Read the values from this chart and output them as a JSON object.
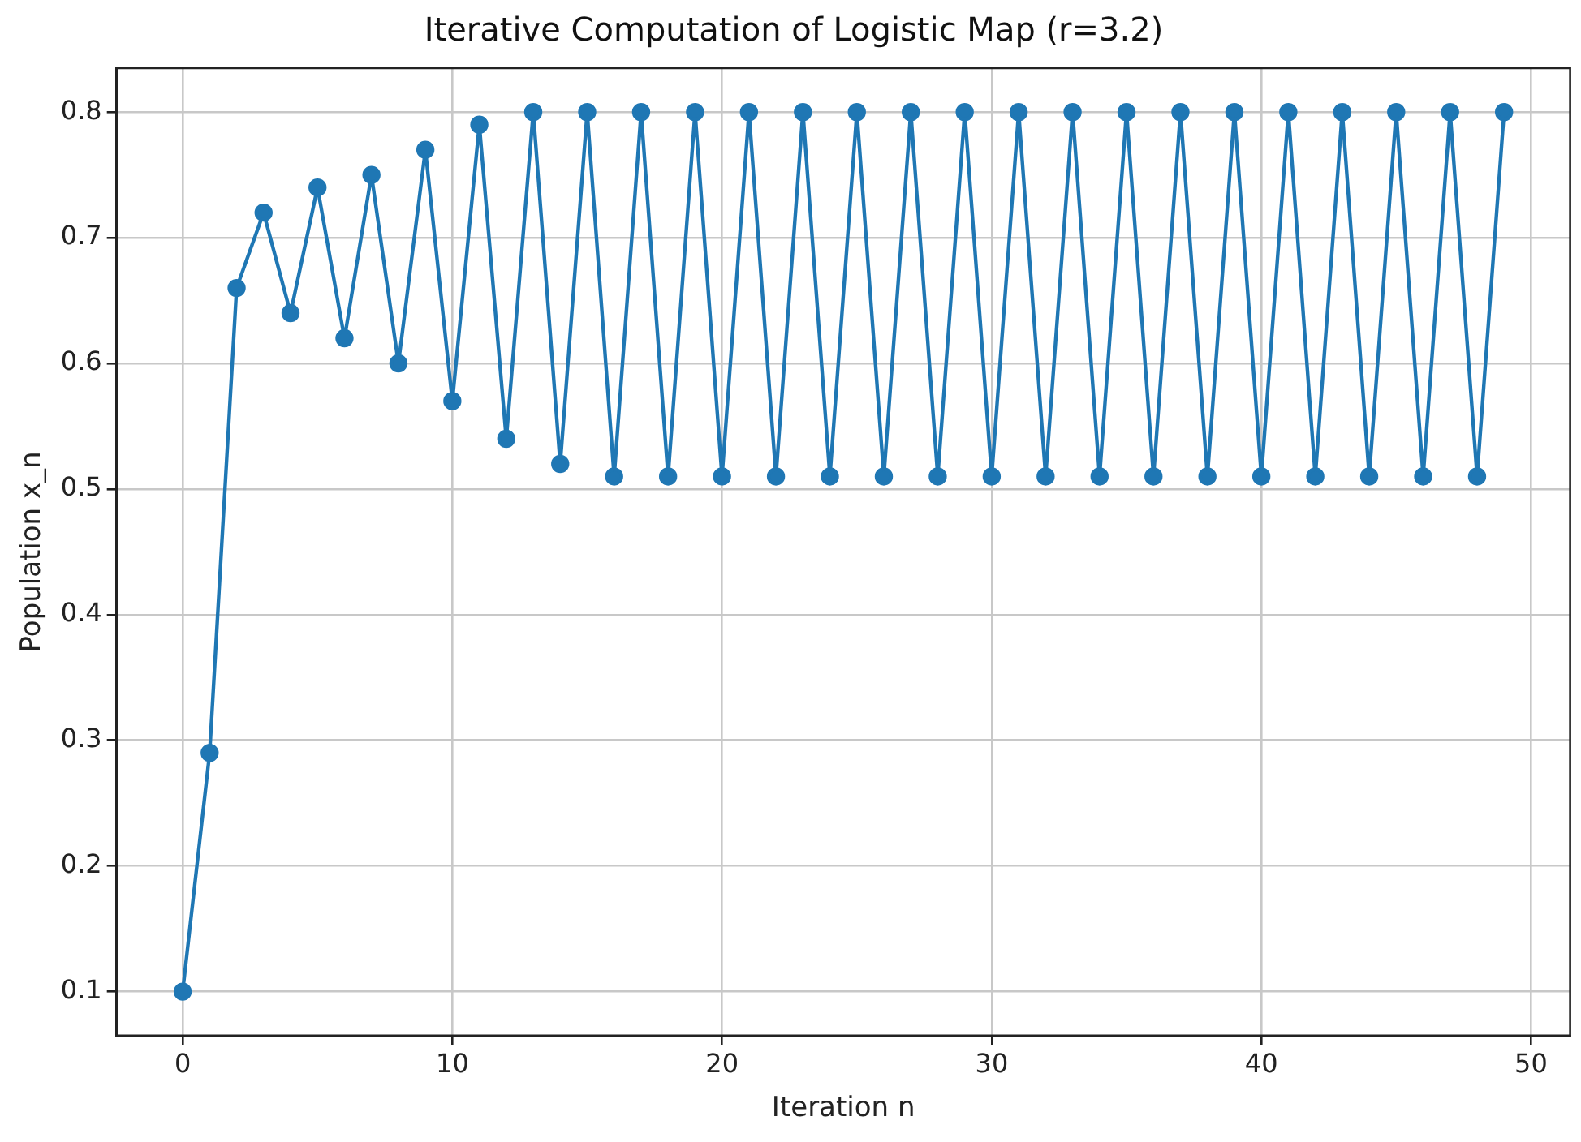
{
  "chart_data": {
    "type": "line",
    "title": "Iterative Computation of Logistic Map (r=3.2)",
    "xlabel": "Iteration n",
    "ylabel": "Population x_n",
    "x": [
      0,
      1,
      2,
      3,
      4,
      5,
      6,
      7,
      8,
      9,
      10,
      11,
      12,
      13,
      14,
      15,
      16,
      17,
      18,
      19,
      20,
      21,
      22,
      23,
      24,
      25,
      26,
      27,
      28,
      29,
      30,
      31,
      32,
      33,
      34,
      35,
      36,
      37,
      38,
      39,
      40,
      41,
      42,
      43,
      44,
      45,
      46,
      47,
      48,
      49
    ],
    "series": [
      {
        "color": "#1f77b4",
        "values": [
          0.1,
          0.29,
          0.66,
          0.72,
          0.64,
          0.74,
          0.62,
          0.75,
          0.6,
          0.77,
          0.57,
          0.79,
          0.54,
          0.8,
          0.52,
          0.8,
          0.51,
          0.8,
          0.51,
          0.8,
          0.51,
          0.8,
          0.51,
          0.8,
          0.51,
          0.8,
          0.51,
          0.8,
          0.51,
          0.8,
          0.51,
          0.8,
          0.51,
          0.8,
          0.51,
          0.8,
          0.51,
          0.8,
          0.51,
          0.8,
          0.51,
          0.8,
          0.51,
          0.8,
          0.51,
          0.8,
          0.51,
          0.8,
          0.51,
          0.8
        ]
      }
    ],
    "xlim": [
      -2.45,
      51.45
    ],
    "xticks": [
      0,
      10,
      20,
      30,
      40,
      50
    ],
    "ylim": [
      0.065,
      0.835
    ],
    "yticks": [
      0.1,
      0.2,
      0.3,
      0.4,
      0.5,
      0.6,
      0.7,
      0.8
    ],
    "grid": true,
    "legend": false,
    "marker": "circle",
    "line_style": "solid"
  }
}
